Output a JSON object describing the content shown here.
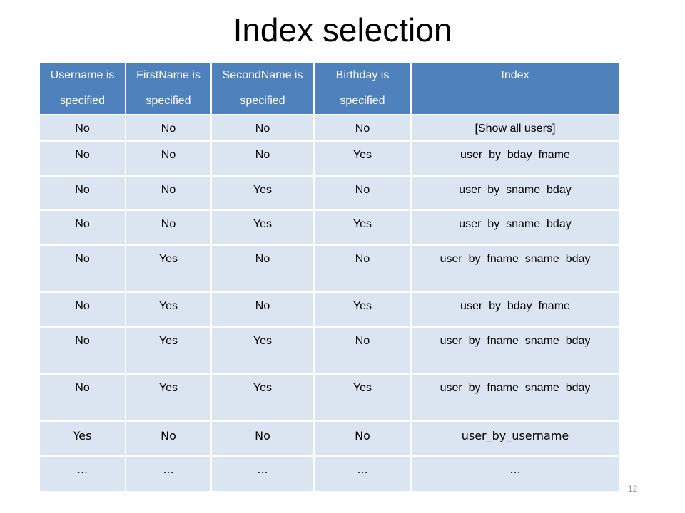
{
  "title": "Index selection",
  "page_number": "12",
  "table": {
    "headers": [
      "Username is specified",
      "FirstName is specified",
      "SecondName is specified",
      "Birthday is specified",
      "Index"
    ],
    "rows": [
      [
        "No",
        "No",
        "No",
        "No",
        "[Show all users]"
      ],
      [
        "No",
        "No",
        "No",
        "Yes",
        "user_by_bday_fname"
      ],
      [
        "No",
        "No",
        "Yes",
        "No",
        "user_by_sname_bday"
      ],
      [
        "No",
        "No",
        "Yes",
        "Yes",
        "user_by_sname_bday"
      ],
      [
        "No",
        "Yes",
        "No",
        "No",
        "user_by_fname_sname_bday"
      ],
      [
        "No",
        "Yes",
        "No",
        "Yes",
        "user_by_bday_fname"
      ],
      [
        "No",
        "Yes",
        "Yes",
        "No",
        "user_by_fname_sname_bday"
      ],
      [
        "No",
        "Yes",
        "Yes",
        "Yes",
        "user_by_fname_sname_bday"
      ],
      [
        "Yes",
        "No",
        "No",
        "No",
        "user_by_username"
      ],
      [
        "…",
        "…",
        "…",
        "…",
        "…"
      ]
    ]
  }
}
